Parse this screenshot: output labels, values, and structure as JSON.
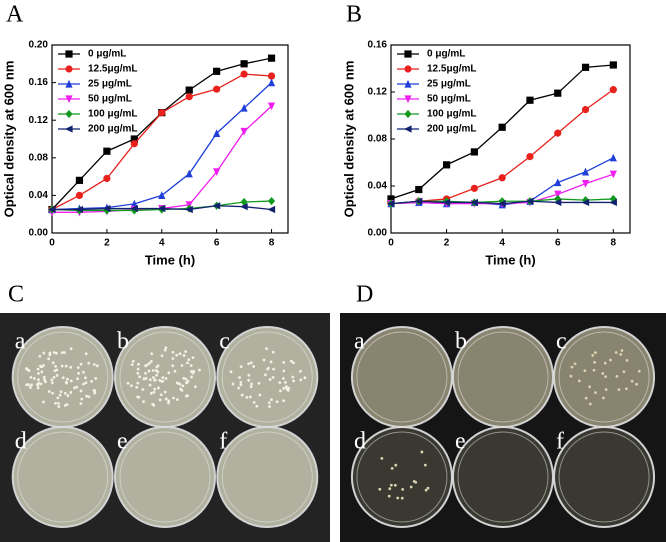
{
  "chart_data": [
    {
      "type": "line",
      "panel_label": "A",
      "x_label": "Time (h)",
      "y_label": "Optical density at 600 nm",
      "x": [
        0,
        1,
        2,
        3,
        4,
        5,
        6,
        7,
        8
      ],
      "xlim": [
        0,
        8.6
      ],
      "xticks": [
        0,
        2,
        4,
        6,
        8
      ],
      "ylim": [
        0,
        0.2
      ],
      "yticks": [
        {
          "value": 0,
          "label": "0.00"
        },
        {
          "value": 0.04,
          "label": "0.04"
        },
        {
          "value": 0.08,
          "label": "0.08"
        },
        {
          "value": 0.12,
          "label": "0.12"
        },
        {
          "value": 0.16,
          "label": "0.16"
        },
        {
          "value": 0.2,
          "label": "0.20"
        }
      ],
      "legend": "upper left",
      "series": [
        {
          "name": "0 μg/mL",
          "color": "#000000",
          "marker": "square",
          "values": [
            0.025,
            0.056,
            0.087,
            0.1,
            0.128,
            0.152,
            0.172,
            0.18,
            0.186
          ]
        },
        {
          "name": "12.5μg/mL",
          "color": "#e8211d",
          "marker": "circle",
          "values": [
            0.025,
            0.04,
            0.058,
            0.095,
            0.128,
            0.145,
            0.153,
            0.169,
            0.167
          ]
        },
        {
          "name": "25 μg/mL",
          "color": "#1f3fd8",
          "marker": "triangle-up",
          "values": [
            0.025,
            0.026,
            0.027,
            0.031,
            0.04,
            0.063,
            0.106,
            0.133,
            0.16
          ]
        },
        {
          "name": "50 μg/mL",
          "color": "#f01ff0",
          "marker": "triangle-down",
          "values": [
            0.022,
            0.022,
            0.023,
            0.025,
            0.026,
            0.03,
            0.065,
            0.108,
            0.135
          ]
        },
        {
          "name": "100 μg/mL",
          "color": "#119a1d",
          "marker": "diamond",
          "values": [
            0.025,
            0.024,
            0.024,
            0.024,
            0.025,
            0.026,
            0.029,
            0.033,
            0.034
          ]
        },
        {
          "name": "200 μg/mL",
          "color": "#12226e",
          "marker": "triangle-left",
          "values": [
            0.025,
            0.025,
            0.026,
            0.026,
            0.026,
            0.025,
            0.029,
            0.028,
            0.025
          ]
        }
      ]
    },
    {
      "type": "line",
      "panel_label": "B",
      "x_label": "Time (h)",
      "y_label": "Optical density at 600 nm",
      "x": [
        0,
        1,
        2,
        3,
        4,
        5,
        6,
        7,
        8
      ],
      "xlim": [
        0,
        8.6
      ],
      "xticks": [
        0,
        2,
        4,
        6,
        8
      ],
      "ylim": [
        0,
        0.16
      ],
      "yticks": [
        {
          "value": 0,
          "label": "0.00"
        },
        {
          "value": 0.04,
          "label": "0.04"
        },
        {
          "value": 0.08,
          "label": "0.08"
        },
        {
          "value": 0.12,
          "label": "0.12"
        },
        {
          "value": 0.16,
          "label": "0.16"
        }
      ],
      "legend": "upper left",
      "series": [
        {
          "name": "0 μg/mL",
          "color": "#000000",
          "marker": "square",
          "values": [
            0.029,
            0.037,
            0.058,
            0.069,
            0.09,
            0.113,
            0.119,
            0.141,
            0.143
          ]
        },
        {
          "name": "12.5μg/mL",
          "color": "#e8211d",
          "marker": "circle",
          "values": [
            0.025,
            0.027,
            0.029,
            0.038,
            0.047,
            0.065,
            0.085,
            0.105,
            0.122
          ]
        },
        {
          "name": "25 μg/mL",
          "color": "#1f3fd8",
          "marker": "triangle-up",
          "values": [
            0.025,
            0.026,
            0.025,
            0.026,
            0.024,
            0.027,
            0.043,
            0.052,
            0.064
          ]
        },
        {
          "name": "50 μg/mL",
          "color": "#f01ff0",
          "marker": "triangle-down",
          "values": [
            0.025,
            0.026,
            0.025,
            0.025,
            0.025,
            0.026,
            0.033,
            0.042,
            0.05
          ]
        },
        {
          "name": "100 μg/mL",
          "color": "#119a1d",
          "marker": "diamond",
          "values": [
            0.025,
            0.027,
            0.027,
            0.026,
            0.027,
            0.027,
            0.029,
            0.028,
            0.029
          ]
        },
        {
          "name": "200 μg/mL",
          "color": "#12226e",
          "marker": "triangle-left",
          "values": [
            0.025,
            0.027,
            0.026,
            0.026,
            0.025,
            0.027,
            0.026,
            0.026,
            0.026
          ]
        }
      ]
    }
  ],
  "photos": [
    {
      "label": "C",
      "dishes": [
        "a",
        "b",
        "c",
        "d",
        "e",
        "f"
      ]
    },
    {
      "label": "D",
      "dishes": [
        "a",
        "b",
        "c",
        "d",
        "e",
        "f"
      ]
    }
  ]
}
